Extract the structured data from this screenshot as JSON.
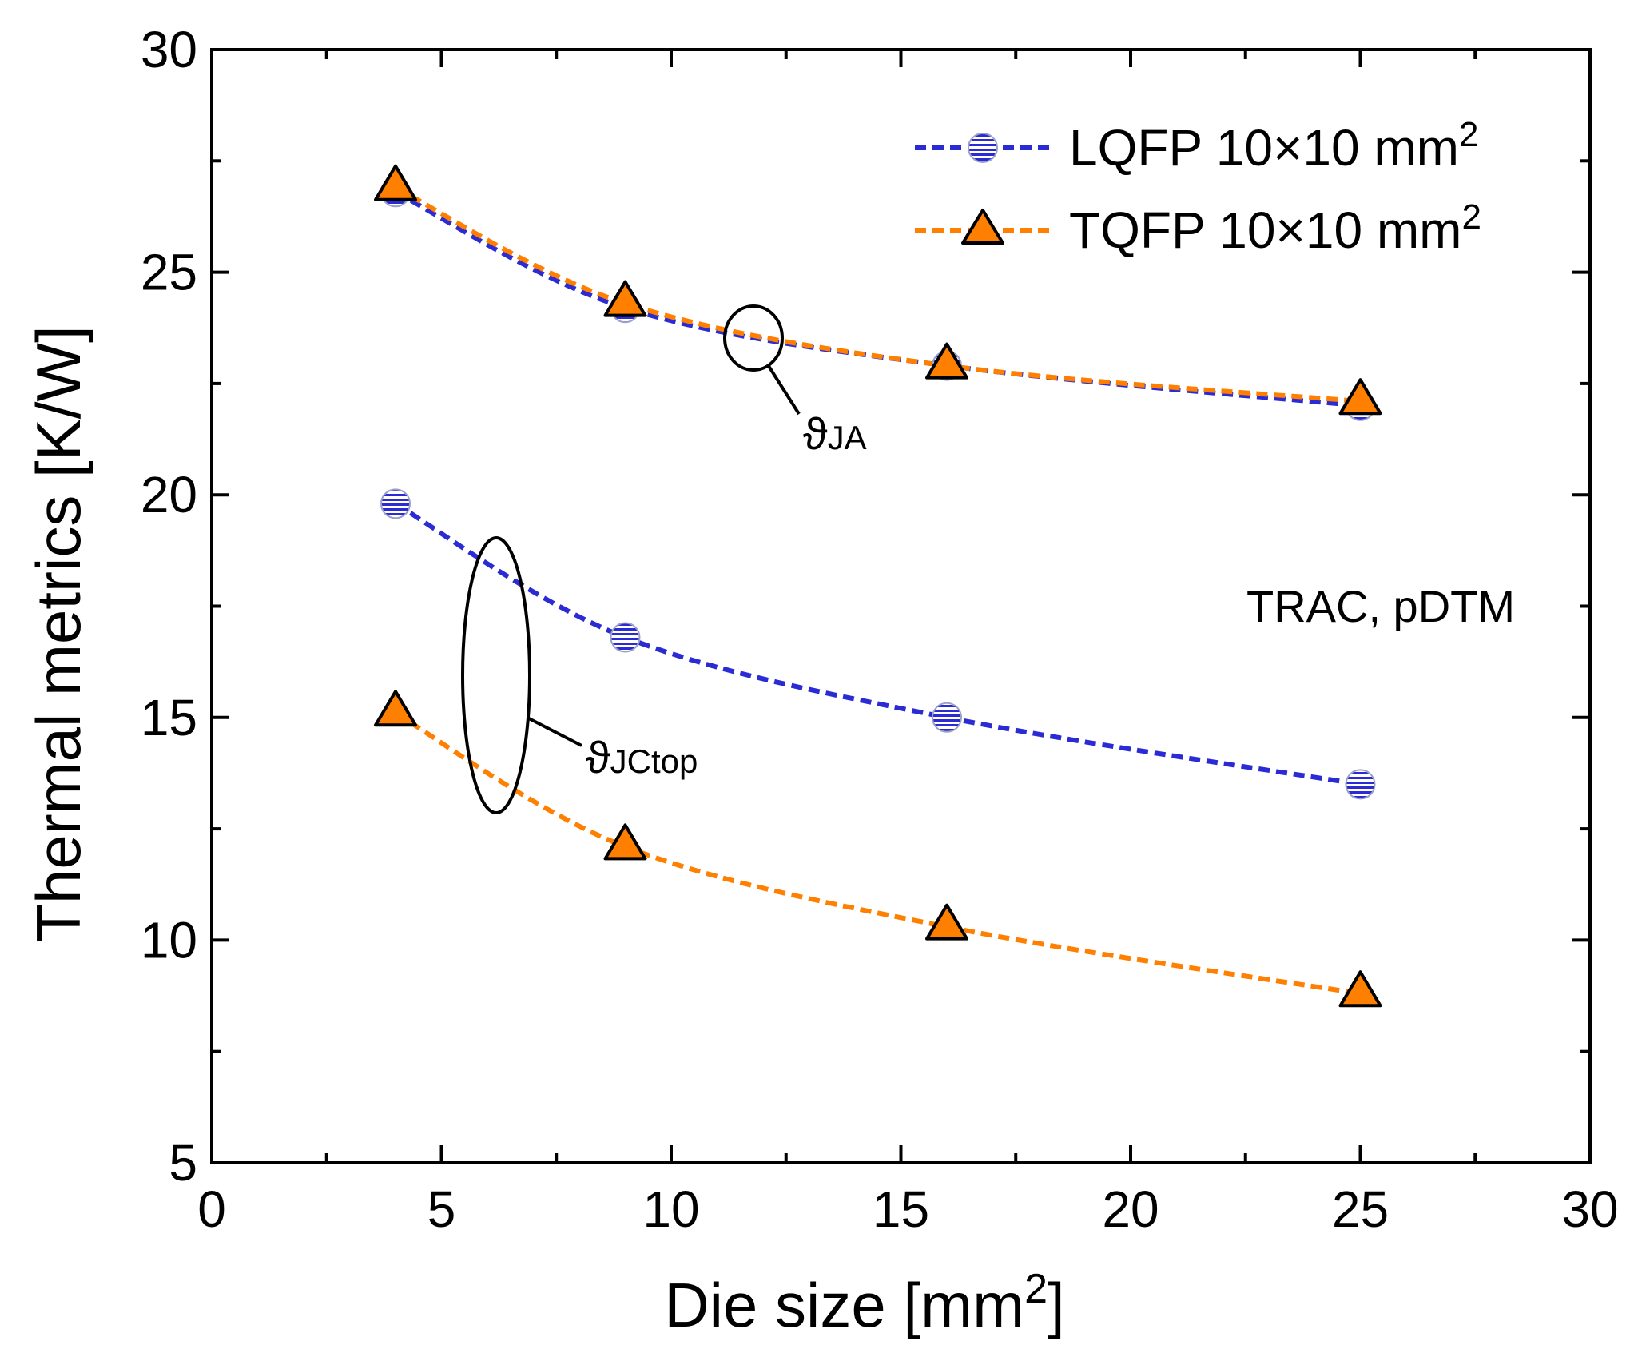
{
  "chart_data": {
    "type": "line",
    "title": "",
    "xlabel": "Die size [mm",
    "xlabel_sup": "2",
    "xlabel_end": "]",
    "ylabel": "Thermal metrics [K/W]",
    "xlim": [
      0,
      30
    ],
    "ylim": [
      5,
      30
    ],
    "xticks": [
      0,
      5,
      10,
      15,
      20,
      25,
      30
    ],
    "yticks": [
      5,
      10,
      15,
      20,
      25,
      30
    ],
    "x": [
      4,
      9,
      16,
      25
    ],
    "series": [
      {
        "name": "LQFP 10×10 mm",
        "name_sup": "2",
        "metric": "JA",
        "marker": "circle",
        "color": "#2B2BD6",
        "values": [
          26.8,
          24.2,
          22.9,
          22.0
        ]
      },
      {
        "name": "TQFP 10×10 mm",
        "name_sup": "2",
        "metric": "JA",
        "marker": "triangle",
        "color": "#FF8000",
        "values": [
          26.9,
          24.3,
          22.9,
          22.1
        ]
      },
      {
        "name": "LQFP 10×10 mm",
        "name_sup": "2",
        "metric": "JCtop",
        "marker": "circle",
        "color": "#2B2BD6",
        "values": [
          19.8,
          16.8,
          15.0,
          13.5
        ]
      },
      {
        "name": "TQFP 10×10 mm",
        "name_sup": "2",
        "metric": "JCtop",
        "marker": "triangle",
        "color": "#FF8000",
        "values": [
          15.1,
          12.1,
          10.3,
          8.8
        ]
      }
    ],
    "legend": {
      "position": "top-right"
    },
    "annotations": [
      {
        "symbol": "ϑ",
        "sub": "JA"
      },
      {
        "symbol": "ϑ",
        "sub": "JCtop"
      },
      {
        "text": "TRAC, pDTM"
      }
    ]
  }
}
